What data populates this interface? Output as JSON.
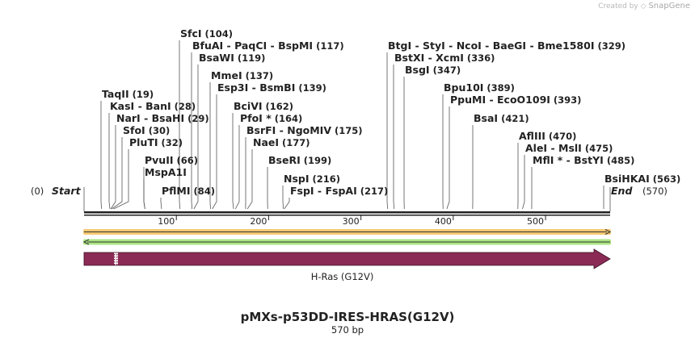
{
  "credit": {
    "prefix": "Created by",
    "brand": "SnapGene"
  },
  "plasmid": {
    "name": "pMXs-p53DD-IRES-HRAS(G12V)",
    "size_label": "570 bp",
    "length": 570
  },
  "ends": {
    "start_label": "Start",
    "start_pos": "(0)",
    "end_label": "End",
    "end_pos": "(570)"
  },
  "ruler_ticks": [
    100,
    200,
    300,
    400,
    500
  ],
  "feature": {
    "name": "H-Ras (G12V)",
    "start": 0,
    "end": 570,
    "color": "#8b2a55"
  },
  "colors": {
    "orange_track": "#f2b544",
    "green_track": "#8fdc5a"
  },
  "sites": [
    {
      "names": [
        "TaqII"
      ],
      "pos": "(19)",
      "loc": 19
    },
    {
      "names": [
        "KasI",
        "BanI"
      ],
      "pos": "(28)",
      "loc": 28
    },
    {
      "names": [
        "NarI",
        "BsaHI"
      ],
      "pos": "(29)",
      "loc": 29
    },
    {
      "names": [
        "SfoI"
      ],
      "pos": "(30)",
      "loc": 30
    },
    {
      "names": [
        "PluTI"
      ],
      "pos": "(32)",
      "loc": 32
    },
    {
      "names": [
        "PvuII"
      ],
      "pos": "(66)",
      "loc": 66
    },
    {
      "names": [
        "MspA1I"
      ],
      "pos": "",
      "loc": 66
    },
    {
      "names": [
        "PflMI"
      ],
      "pos": "(84)",
      "loc": 84
    },
    {
      "names": [
        "SfcI"
      ],
      "pos": "(104)",
      "loc": 104
    },
    {
      "names": [
        "BfuAI",
        "PaqCI",
        "BspMI"
      ],
      "pos": "(117)",
      "loc": 117
    },
    {
      "names": [
        "BsaWI"
      ],
      "pos": "(119)",
      "loc": 119
    },
    {
      "names": [
        "MmeI"
      ],
      "pos": "(137)",
      "loc": 137
    },
    {
      "names": [
        "Esp3I",
        "BsmBI"
      ],
      "pos": "(139)",
      "loc": 139
    },
    {
      "names": [
        "BciVI"
      ],
      "pos": "(162)",
      "loc": 162
    },
    {
      "names": [
        "PfoI *"
      ],
      "pos": "(164)",
      "loc": 164
    },
    {
      "names": [
        "BsrFI",
        "NgoMIV"
      ],
      "pos": "(175)",
      "loc": 175
    },
    {
      "names": [
        "NaeI"
      ],
      "pos": "(177)",
      "loc": 177
    },
    {
      "names": [
        "BseRI"
      ],
      "pos": "(199)",
      "loc": 199
    },
    {
      "names": [
        "NspI"
      ],
      "pos": "(216)",
      "loc": 216
    },
    {
      "names": [
        "FspI",
        "FspAI"
      ],
      "pos": "(217)",
      "loc": 217
    },
    {
      "names": [
        "BtgI",
        "StyI",
        "NcoI",
        "BaeGI",
        "Bme1580I"
      ],
      "pos": "(329)",
      "loc": 329
    },
    {
      "names": [
        "BstXI",
        "XcmI"
      ],
      "pos": "(336)",
      "loc": 336
    },
    {
      "names": [
        "BsgI"
      ],
      "pos": "(347)",
      "loc": 347
    },
    {
      "names": [
        "Bpu10I"
      ],
      "pos": "(389)",
      "loc": 389
    },
    {
      "names": [
        "PpuMI",
        "EcoO109I"
      ],
      "pos": "(393)",
      "loc": 393
    },
    {
      "names": [
        "BsaI"
      ],
      "pos": "(421)",
      "loc": 421
    },
    {
      "names": [
        "AflIII"
      ],
      "pos": "(470)",
      "loc": 470
    },
    {
      "names": [
        "AleI",
        "MslI"
      ],
      "pos": "(475)",
      "loc": 475
    },
    {
      "names": [
        "MflI *",
        "BstYI"
      ],
      "pos": "(485)",
      "loc": 485
    },
    {
      "names": [
        "BsiHKAI"
      ],
      "pos": "(563)",
      "loc": 563
    }
  ]
}
